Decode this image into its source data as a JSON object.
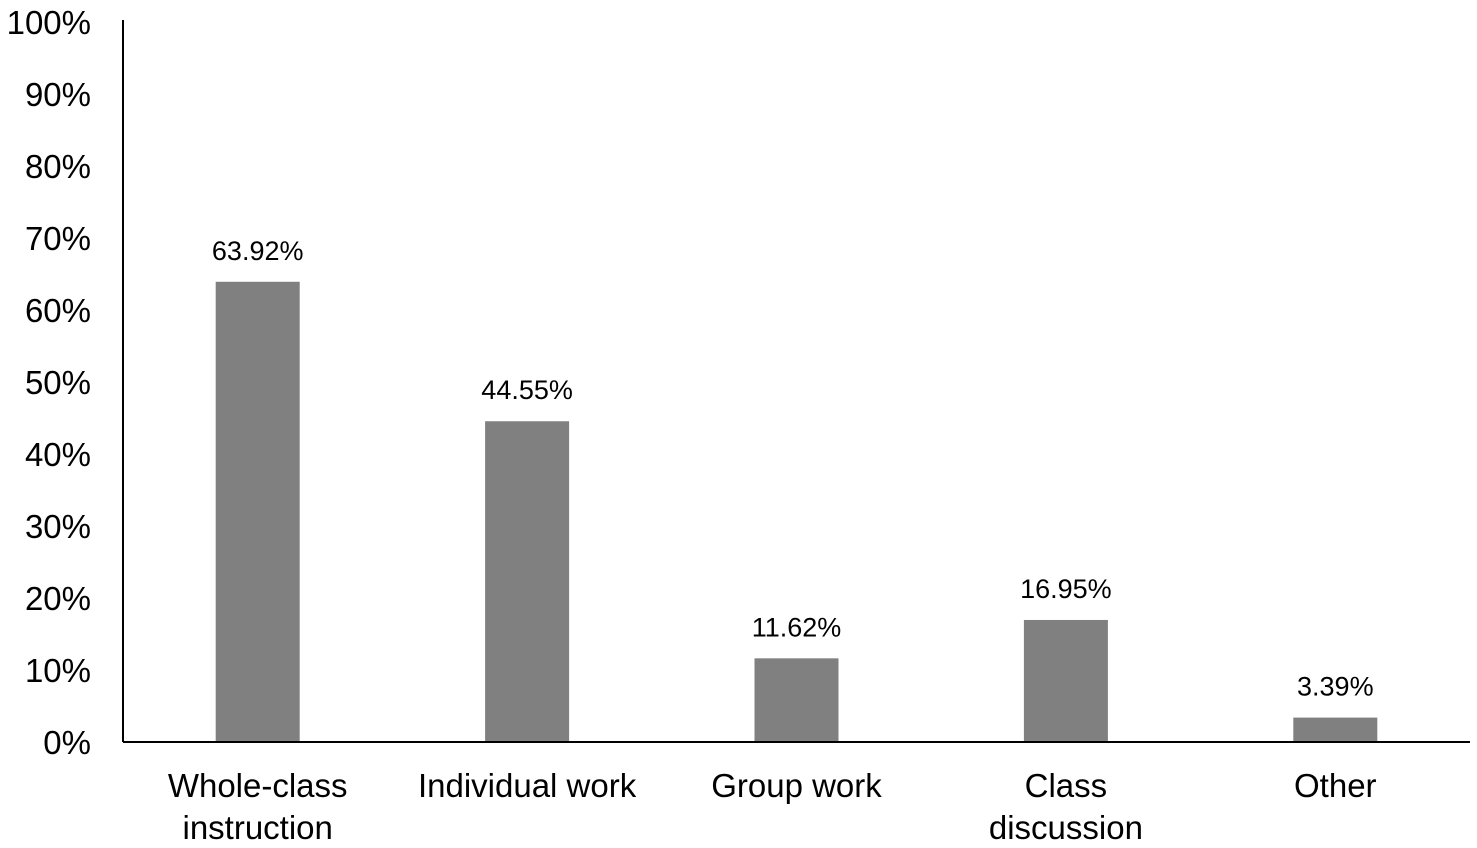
{
  "chart_data": {
    "type": "bar",
    "categories": [
      [
        "Whole-class",
        "instruction"
      ],
      [
        "Individual work"
      ],
      [
        "Group work"
      ],
      [
        "Class",
        "discussion"
      ],
      [
        "Other"
      ]
    ],
    "values": [
      63.92,
      44.55,
      11.62,
      16.95,
      3.39
    ],
    "value_labels": [
      "63.92%",
      "44.55%",
      "11.62%",
      "16.95%",
      "3.39%"
    ],
    "y_ticks": [
      "0%",
      "10%",
      "20%",
      "30%",
      "40%",
      "50%",
      "60%",
      "70%",
      "80%",
      "90%",
      "100%"
    ],
    "ylim": [
      0,
      100
    ],
    "title": "",
    "xlabel": "",
    "ylabel": "",
    "grid": false,
    "legend": "none",
    "bar_color": "#808080",
    "axis_color": "#000000"
  }
}
